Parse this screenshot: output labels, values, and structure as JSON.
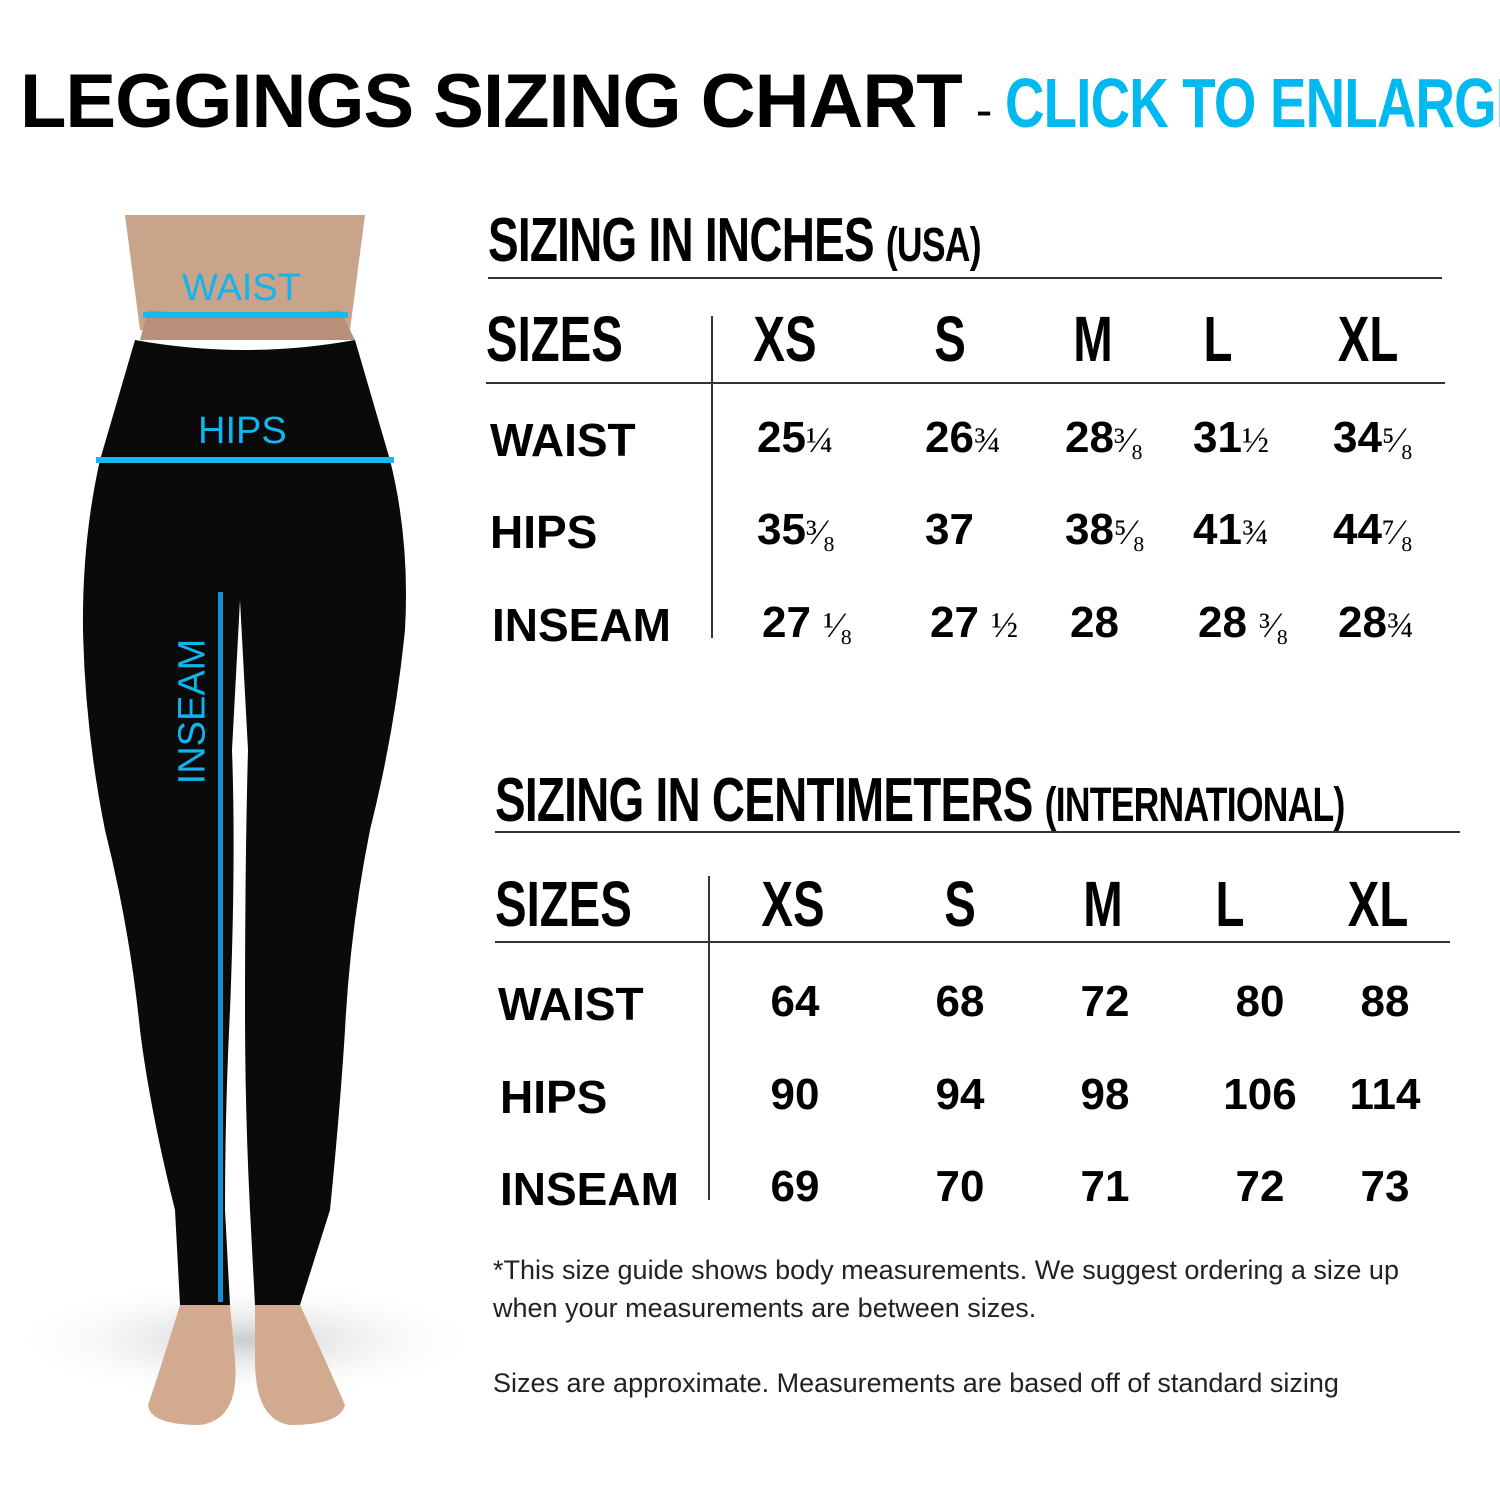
{
  "header": {
    "title": "LEGGINGS SIZING CHART",
    "separator": "-",
    "cta": "CLICK TO ENLARGE"
  },
  "colors": {
    "accent": "#00b9f1",
    "leggings": "#0a0a0a"
  },
  "figure": {
    "labels": {
      "waist": "WAIST",
      "hips": "HIPS",
      "inseam": "INSEAM"
    }
  },
  "inches": {
    "title": "SIZING IN INCHES",
    "subtitle": "(USA)",
    "sizes_label": "SIZES",
    "columns": [
      "XS",
      "S",
      "M",
      "L",
      "XL"
    ],
    "rows": [
      {
        "label": "WAIST",
        "values": [
          [
            "25",
            "¼"
          ],
          [
            "26",
            "¾"
          ],
          [
            "28",
            "³⁄₈"
          ],
          [
            "31",
            "½"
          ],
          [
            "34",
            "⁵⁄₈"
          ]
        ]
      },
      {
        "label": "HIPS",
        "values": [
          [
            "35",
            "³⁄₈"
          ],
          [
            "37",
            ""
          ],
          [
            "38",
            "⁵⁄₈"
          ],
          [
            "41",
            "¾"
          ],
          [
            "44",
            "⁷⁄₈"
          ]
        ]
      },
      {
        "label": "INSEAM",
        "values": [
          [
            "27 ",
            "¹⁄₈"
          ],
          [
            "27 ",
            "½"
          ],
          [
            "28",
            ""
          ],
          [
            "28 ",
            "³⁄₈"
          ],
          [
            "28",
            "¾"
          ]
        ]
      }
    ]
  },
  "cm": {
    "title": "SIZING IN CENTIMETERS",
    "subtitle": "(INTERNATIONAL)",
    "sizes_label": "SIZES",
    "columns": [
      "XS",
      "S",
      "M",
      "L",
      "XL"
    ],
    "rows": [
      {
        "label": "WAIST",
        "values": [
          "64",
          "68",
          "72",
          "80",
          "88"
        ]
      },
      {
        "label": "HIPS",
        "values": [
          "90",
          "94",
          "98",
          "106",
          "114"
        ]
      },
      {
        "label": "INSEAM",
        "values": [
          "69",
          "70",
          "71",
          "72",
          "73"
        ]
      }
    ]
  },
  "notes": {
    "note1": "*This size guide shows body measurements. We suggest ordering a size up when your measurements are between sizes.",
    "note2": "Sizes are approximate. Measurements are based off of standard sizing"
  }
}
